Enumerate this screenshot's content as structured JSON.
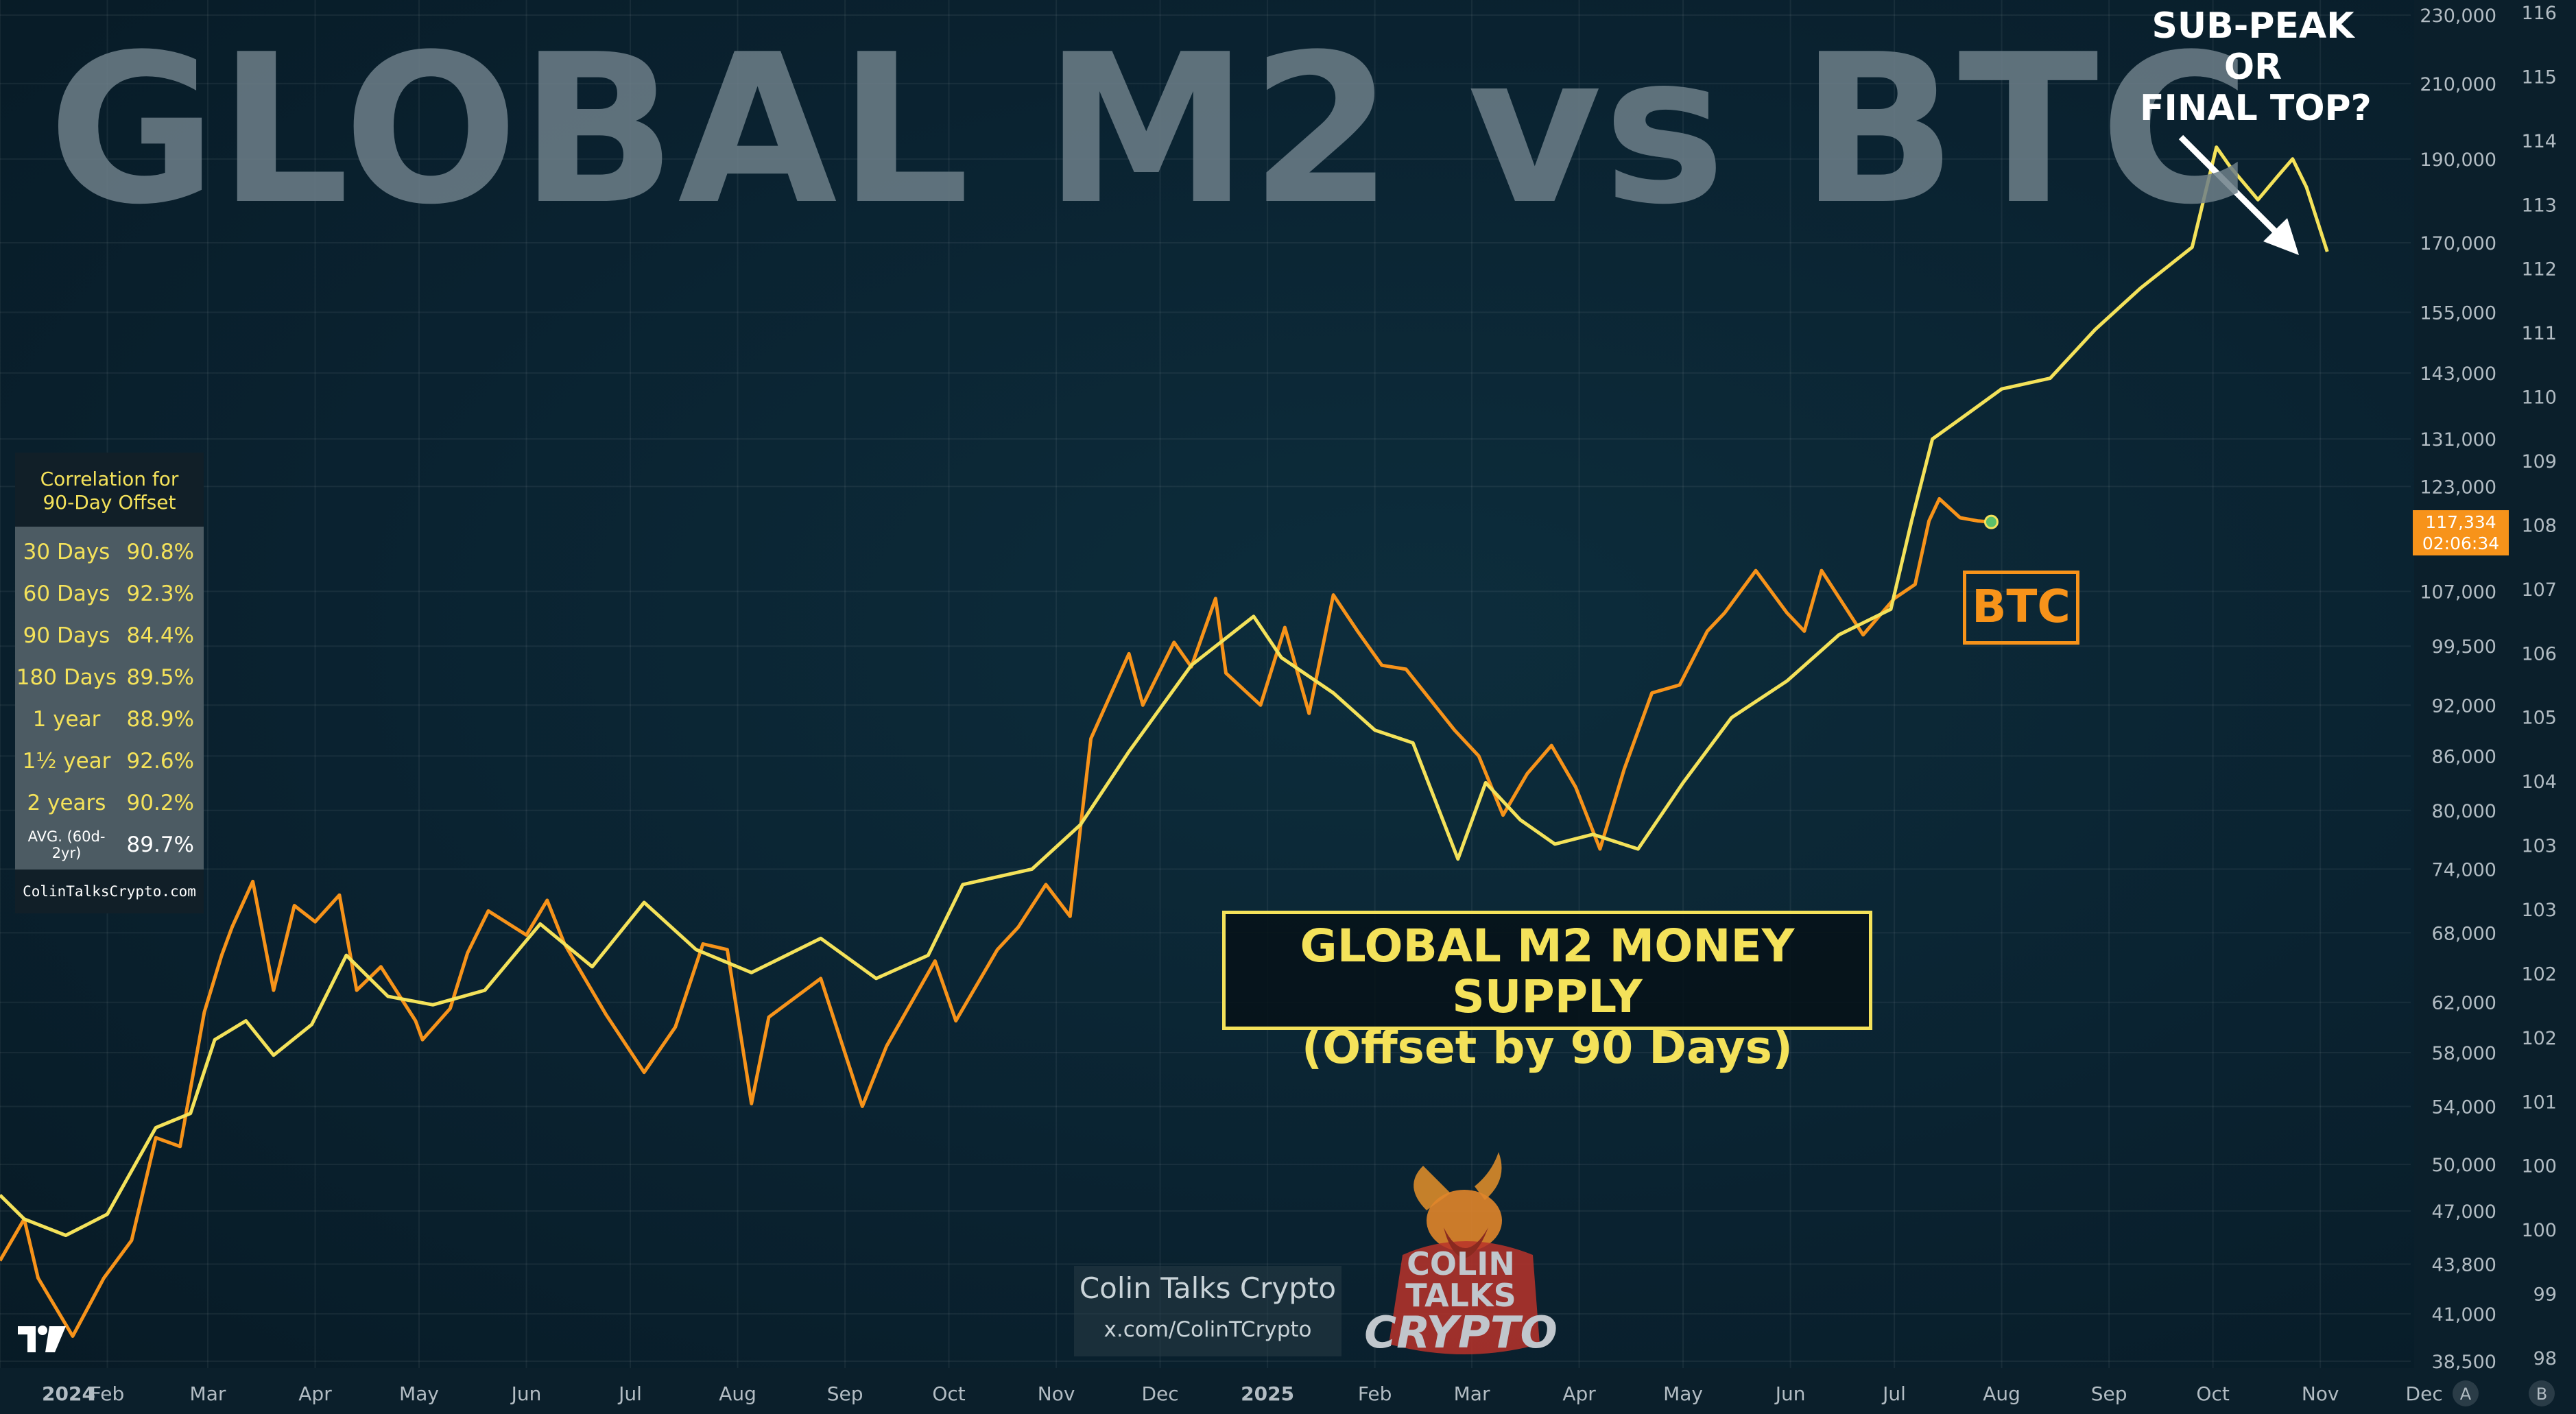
{
  "title": "GLOBAL M2 vs BTC",
  "annotation": {
    "lines": [
      "SUB-PEAK",
      "OR",
      "FINAL TOP?"
    ]
  },
  "correlation_table": {
    "header_line1": "Correlation for",
    "header_line2": "90-Day Offset",
    "rows": [
      {
        "label": "30 Days",
        "value": "90.8%"
      },
      {
        "label": "60 Days",
        "value": "92.3%"
      },
      {
        "label": "90 Days",
        "value": "84.4%"
      },
      {
        "label": "180 Days",
        "value": "89.5%"
      },
      {
        "label": "1 year",
        "value": "88.9%"
      },
      {
        "label": "1½ year",
        "value": "92.6%"
      },
      {
        "label": "2 years",
        "value": "90.2%"
      }
    ],
    "avg_label": "AVG. (60d-2yr)",
    "avg_value": "89.7%",
    "footer": "ColinTalksCrypto.com"
  },
  "m2_label": {
    "line1": "GLOBAL M2 MONEY SUPPLY",
    "line2": "(Offset by 90 Days)"
  },
  "btc_label": "BTC",
  "price_badge": {
    "price": "117,334",
    "countdown": "02:06:34"
  },
  "credit": {
    "name": "Colin Talks Crypto",
    "handle": "x.com/ColinTCrypto"
  },
  "logo": {
    "line1": "COLIN TALKS",
    "line2": "CRYPTO"
  },
  "colors": {
    "btc": "#f7931a",
    "m2": "#f4e25a",
    "badge": "#f7931a",
    "background": "#0a2230"
  },
  "chart_data": {
    "type": "line",
    "x_labels": [
      "2024",
      "Feb",
      "Mar",
      "Apr",
      "May",
      "Jun",
      "Jul",
      "Aug",
      "Sep",
      "Oct",
      "Nov",
      "Dec",
      "2025",
      "Feb",
      "Mar",
      "Apr",
      "May",
      "Jun",
      "Jul",
      "Aug",
      "Sep",
      "Oct",
      "Nov",
      "Dec"
    ],
    "x_range": [
      "2024-01-01",
      "2025-12-08"
    ],
    "scale_buttons": [
      "A",
      "B"
    ],
    "y_axis_btc": {
      "scale": "log",
      "ticks": [
        "230,000",
        "210,000",
        "190,000",
        "170,000",
        "155,000",
        "143,000",
        "131,000",
        "123,000",
        "107,000",
        "99,500",
        "92,000",
        "86,000",
        "80,000",
        "74,000",
        "68,000",
        "62,000",
        "58,000",
        "54,000",
        "50,000",
        "47,000",
        "43,800",
        "41,000",
        "38,500"
      ]
    },
    "y_axis_m2": {
      "ticks": [
        "116",
        "115",
        "114",
        "113",
        "112",
        "111",
        "110",
        "109",
        "108",
        "107",
        "106",
        "105",
        "104",
        "103",
        "103",
        "102",
        "102",
        "101",
        "100",
        "100",
        "99",
        "98"
      ]
    },
    "grid": true,
    "series": [
      {
        "name": "BTC",
        "color": "#f7931a",
        "points": [
          [
            "2024-01-01",
            44000
          ],
          [
            "2024-01-08",
            46500
          ],
          [
            "2024-01-12",
            43000
          ],
          [
            "2024-01-22",
            39800
          ],
          [
            "2024-01-31",
            43000
          ],
          [
            "2024-02-08",
            45200
          ],
          [
            "2024-02-15",
            51800
          ],
          [
            "2024-02-22",
            51200
          ],
          [
            "2024-02-29",
            61200
          ],
          [
            "2024-03-05",
            66000
          ],
          [
            "2024-03-08",
            68500
          ],
          [
            "2024-03-14",
            72800
          ],
          [
            "2024-03-20",
            63000
          ],
          [
            "2024-03-26",
            70500
          ],
          [
            "2024-04-01",
            69000
          ],
          [
            "2024-04-08",
            71500
          ],
          [
            "2024-04-13",
            63000
          ],
          [
            "2024-04-20",
            65000
          ],
          [
            "2024-04-30",
            60500
          ],
          [
            "2024-05-02",
            59000
          ],
          [
            "2024-05-10",
            61500
          ],
          [
            "2024-05-15",
            66200
          ],
          [
            "2024-05-21",
            70000
          ],
          [
            "2024-06-01",
            67800
          ],
          [
            "2024-06-07",
            71000
          ],
          [
            "2024-06-12",
            67000
          ],
          [
            "2024-06-24",
            61000
          ],
          [
            "2024-07-05",
            56500
          ],
          [
            "2024-07-14",
            60000
          ],
          [
            "2024-07-22",
            67000
          ],
          [
            "2024-07-29",
            66500
          ],
          [
            "2024-08-05",
            54200
          ],
          [
            "2024-08-10",
            60800
          ],
          [
            "2024-08-25",
            64000
          ],
          [
            "2024-09-06",
            54000
          ],
          [
            "2024-09-13",
            58500
          ],
          [
            "2024-09-27",
            65500
          ],
          [
            "2024-10-03",
            60500
          ],
          [
            "2024-10-15",
            66500
          ],
          [
            "2024-10-21",
            68500
          ],
          [
            "2024-10-29",
            72500
          ],
          [
            "2024-11-05",
            69500
          ],
          [
            "2024-11-11",
            88000
          ],
          [
            "2024-11-22",
            98500
          ],
          [
            "2024-11-26",
            92000
          ],
          [
            "2024-12-05",
            100000
          ],
          [
            "2024-12-10",
            96800
          ],
          [
            "2024-12-17",
            106000
          ],
          [
            "2024-12-20",
            96000
          ],
          [
            "2024-12-30",
            92000
          ],
          [
            "2025-01-06",
            102000
          ],
          [
            "2025-01-13",
            91000
          ],
          [
            "2025-01-20",
            106500
          ],
          [
            "2025-01-27",
            101500
          ],
          [
            "2025-02-03",
            97000
          ],
          [
            "2025-02-10",
            96500
          ],
          [
            "2025-02-24",
            89000
          ],
          [
            "2025-03-03",
            86000
          ],
          [
            "2025-03-10",
            79500
          ],
          [
            "2025-03-17",
            84000
          ],
          [
            "2025-03-24",
            87200
          ],
          [
            "2025-03-31",
            82500
          ],
          [
            "2025-04-07",
            76000
          ],
          [
            "2025-04-14",
            84500
          ],
          [
            "2025-04-22",
            93500
          ],
          [
            "2025-04-30",
            94500
          ],
          [
            "2025-05-08",
            101500
          ],
          [
            "2025-05-13",
            104000
          ],
          [
            "2025-05-22",
            110000
          ],
          [
            "2025-05-31",
            104000
          ],
          [
            "2025-06-05",
            101500
          ],
          [
            "2025-06-10",
            110000
          ],
          [
            "2025-06-22",
            101000
          ],
          [
            "2025-07-01",
            106000
          ],
          [
            "2025-07-07",
            108000
          ],
          [
            "2025-07-11",
            117500
          ],
          [
            "2025-07-14",
            121000
          ],
          [
            "2025-07-20",
            118000
          ],
          [
            "2025-07-25",
            117500
          ],
          [
            "2025-07-29",
            117334
          ]
        ]
      },
      {
        "name": "GLOBAL M2 MONEY SUPPLY (Offset by 90 Days)",
        "color": "#f4e25a",
        "points": [
          [
            "2024-01-01",
            48000
          ],
          [
            "2024-01-08",
            46500
          ],
          [
            "2024-01-20",
            45500
          ],
          [
            "2024-02-01",
            46800
          ],
          [
            "2024-02-15",
            52500
          ],
          [
            "2024-02-25",
            53500
          ],
          [
            "2024-03-03",
            59000
          ],
          [
            "2024-03-12",
            60500
          ],
          [
            "2024-03-20",
            57800
          ],
          [
            "2024-03-31",
            60200
          ],
          [
            "2024-04-10",
            66000
          ],
          [
            "2024-04-22",
            62500
          ],
          [
            "2024-05-05",
            61800
          ],
          [
            "2024-05-20",
            63000
          ],
          [
            "2024-06-05",
            68800
          ],
          [
            "2024-06-20",
            65000
          ],
          [
            "2024-07-05",
            70800
          ],
          [
            "2024-07-20",
            66500
          ],
          [
            "2024-08-05",
            64500
          ],
          [
            "2024-08-25",
            67500
          ],
          [
            "2024-09-10",
            64000
          ],
          [
            "2024-09-25",
            66000
          ],
          [
            "2024-10-05",
            72500
          ],
          [
            "2024-10-25",
            74000
          ],
          [
            "2024-11-08",
            78500
          ],
          [
            "2024-11-22",
            86500
          ],
          [
            "2024-12-10",
            97000
          ],
          [
            "2024-12-28",
            103500
          ],
          [
            "2025-01-05",
            98000
          ],
          [
            "2025-01-20",
            93500
          ],
          [
            "2025-02-01",
            89000
          ],
          [
            "2025-02-12",
            87500
          ],
          [
            "2025-02-25",
            75000
          ],
          [
            "2025-03-05",
            83000
          ],
          [
            "2025-03-15",
            79000
          ],
          [
            "2025-03-25",
            76500
          ],
          [
            "2025-04-05",
            77500
          ],
          [
            "2025-04-18",
            76000
          ],
          [
            "2025-05-01",
            83000
          ],
          [
            "2025-05-15",
            90500
          ],
          [
            "2025-05-31",
            95000
          ],
          [
            "2025-06-15",
            101000
          ],
          [
            "2025-06-30",
            104500
          ],
          [
            "2025-07-06",
            117500
          ],
          [
            "2025-07-12",
            131000
          ],
          [
            "2025-07-20",
            134500
          ],
          [
            "2025-08-01",
            140000
          ],
          [
            "2025-08-15",
            142000
          ],
          [
            "2025-08-28",
            151500
          ],
          [
            "2025-09-10",
            160000
          ],
          [
            "2025-09-25",
            169000
          ],
          [
            "2025-10-02",
            193000
          ],
          [
            "2025-10-06",
            188000
          ],
          [
            "2025-10-14",
            180000
          ],
          [
            "2025-10-20",
            186000
          ],
          [
            "2025-10-24",
            190000
          ],
          [
            "2025-10-28",
            183000
          ],
          [
            "2025-11-03",
            168000
          ]
        ]
      }
    ]
  }
}
